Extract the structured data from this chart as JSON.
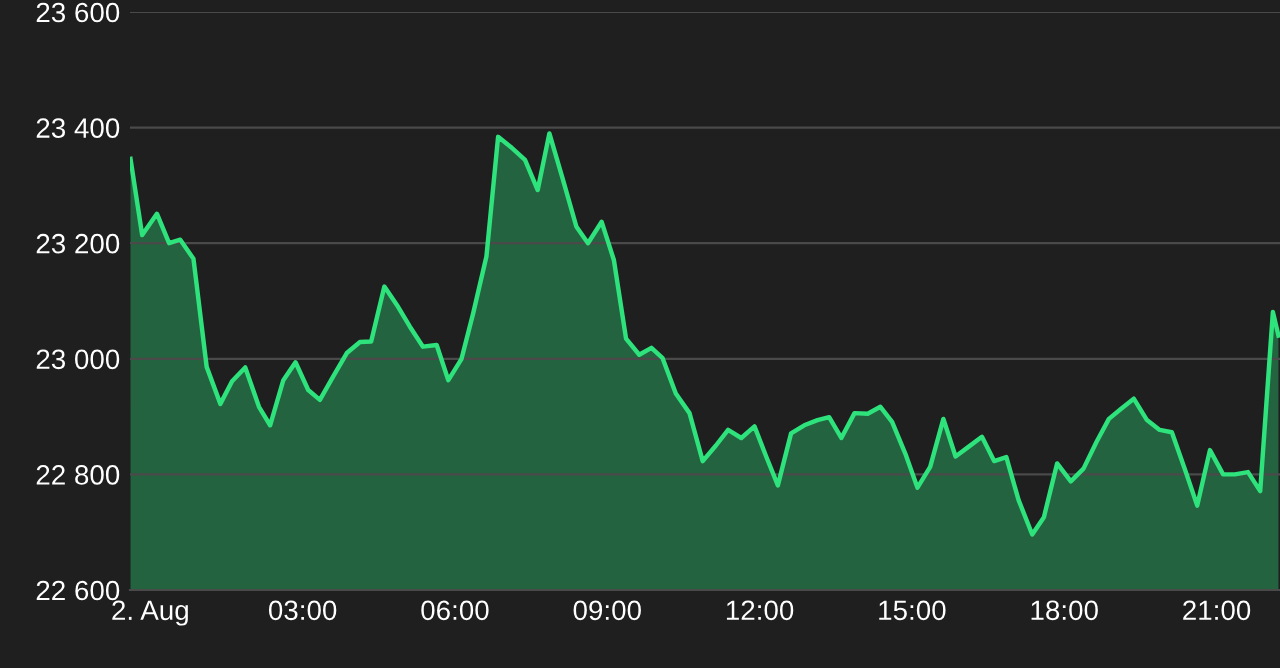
{
  "chart_data": {
    "type": "area",
    "x": [
      -0.39,
      -0.16,
      0.13,
      0.37,
      0.59,
      0.85,
      1.11,
      1.38,
      1.61,
      1.87,
      2.14,
      2.36,
      2.62,
      2.86,
      3.11,
      3.34,
      3.6,
      3.87,
      4.13,
      4.35,
      4.61,
      4.88,
      5.11,
      5.37,
      5.64,
      5.87,
      6.13,
      6.36,
      6.62,
      6.85,
      7.12,
      7.38,
      7.63,
      7.86,
      8.13,
      8.39,
      8.62,
      8.89,
      9.13,
      9.37,
      9.63,
      9.87,
      10.09,
      10.35,
      10.62,
      10.88,
      11.14,
      11.38,
      11.64,
      11.9,
      12.13,
      12.36,
      12.62,
      12.88,
      13.14,
      13.37,
      13.61,
      13.87,
      14.13,
      14.38,
      14.61,
      14.87,
      15.11,
      15.36,
      15.62,
      15.86,
      16.12,
      16.38,
      16.62,
      16.86,
      17.1,
      17.37,
      17.6,
      17.86,
      18.13,
      18.38,
      18.64,
      18.88,
      19.14,
      19.37,
      19.63,
      19.88,
      20.12,
      20.38,
      20.62,
      20.87,
      21.13,
      21.36,
      21.62,
      21.86,
      22.11,
      22.22
    ],
    "series": [
      {
        "color": "#2ee27c",
        "values": [
          23346,
          23214,
          23251,
          23200,
          23206,
          23173,
          22986,
          22922,
          22961,
          22985,
          22917,
          22885,
          22963,
          22994,
          22946,
          22929,
          22969,
          23010,
          23029,
          23030,
          23125,
          23090,
          23056,
          23021,
          23024,
          22963,
          23000,
          23079,
          23177,
          23384,
          23365,
          23344,
          23292,
          23390,
          23309,
          23229,
          23200,
          23237,
          23171,
          23035,
          23007,
          23019,
          23001,
          22940,
          22906,
          22823,
          22850,
          22877,
          22863,
          22883,
          22831,
          22781,
          22871,
          22885,
          22894,
          22899,
          22863,
          22906,
          22905,
          22917,
          22891,
          22836,
          22777,
          22813,
          22896,
          22831,
          22848,
          22865,
          22823,
          22830,
          22756,
          22696,
          22726,
          22819,
          22788,
          22810,
          22857,
          22896,
          22915,
          22931,
          22894,
          22877,
          22873,
          22808,
          22746,
          22842,
          22800,
          22800,
          22804,
          22771,
          23081,
          23040
        ]
      }
    ],
    "xlim": [
      -0.4,
      22.25
    ],
    "xticks": [
      {
        "value": 0,
        "label": "2. Aug"
      },
      {
        "value": 3,
        "label": "03:00"
      },
      {
        "value": 6,
        "label": "06:00"
      },
      {
        "value": 9,
        "label": "09:00"
      },
      {
        "value": 12,
        "label": "12:00"
      },
      {
        "value": 15,
        "label": "15:00"
      },
      {
        "value": 18,
        "label": "18:00"
      },
      {
        "value": 21,
        "label": "21:00"
      }
    ],
    "ylim": [
      22600,
      23600
    ],
    "yticks": [
      {
        "value": 22600,
        "label": "22 600"
      },
      {
        "value": 22800,
        "label": "22 800"
      },
      {
        "value": 23000,
        "label": "23 000"
      },
      {
        "value": 23200,
        "label": "23 200"
      },
      {
        "value": 23400,
        "label": "23 400"
      },
      {
        "value": 23600,
        "label": "23 600"
      }
    ],
    "grid": "y",
    "marker": "none",
    "line_style": "solid"
  }
}
